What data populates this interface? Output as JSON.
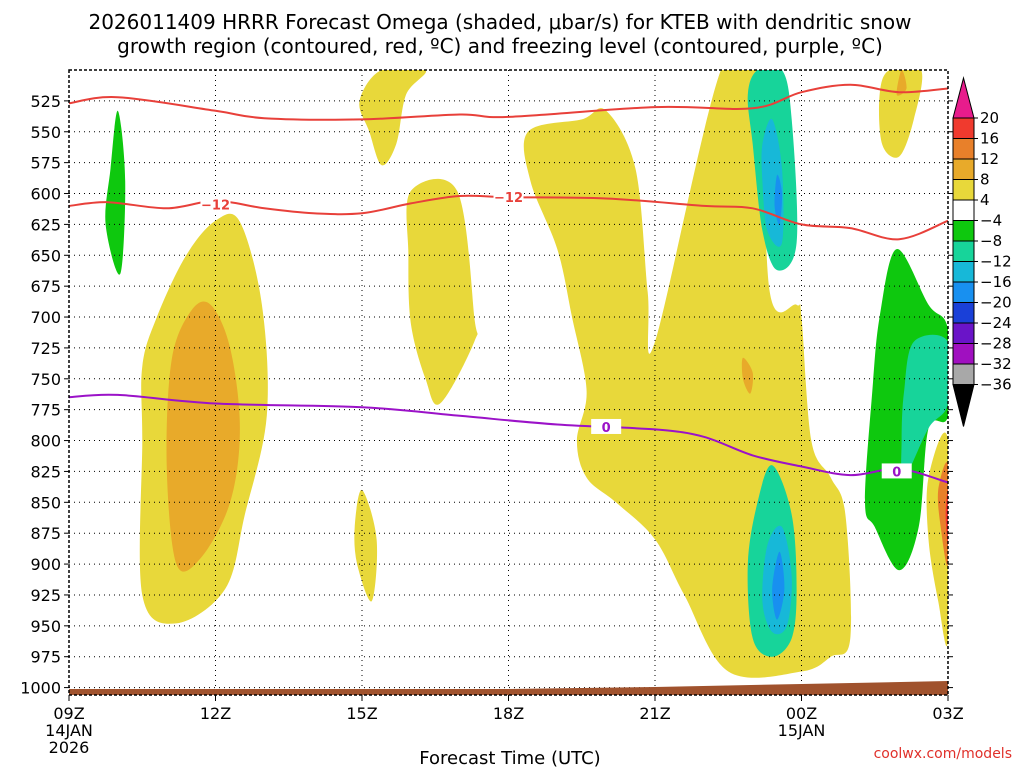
{
  "chart_data": {
    "type": "heatmap",
    "title_line1": "2026011409 HRRR Forecast Omega (shaded, μbar/s) for KTEB with dendritic snow",
    "title_line2": "growth region (contoured, red, ºC) and freezing level (contoured, purple, ºC)",
    "xlabel": "Forecast Time (UTC)",
    "x_ticks": [
      "09Z",
      "12Z",
      "15Z",
      "18Z",
      "21Z",
      "00Z",
      "03Z"
    ],
    "x_tick_hours": [
      0,
      3,
      6,
      9,
      12,
      15,
      18
    ],
    "x_sub_labels": [
      {
        "hour": 0,
        "lines": [
          "14JAN",
          "2026"
        ]
      },
      {
        "hour": 15,
        "lines": [
          "15JAN"
        ]
      }
    ],
    "y_ticks": [
      "525",
      "550",
      "575",
      "600",
      "625",
      "650",
      "675",
      "700",
      "725",
      "750",
      "775",
      "800",
      "825",
      "850",
      "875",
      "900",
      "925",
      "950",
      "975",
      "1000"
    ],
    "ylim_hpa": [
      500,
      1006
    ],
    "xlim_hours": [
      0,
      18
    ],
    "colorbar": {
      "labels": [
        "20",
        "16",
        "12",
        "8",
        "4",
        "−4",
        "−8",
        "−12",
        "−16",
        "−20",
        "−24",
        "−28",
        "−32",
        "−36"
      ],
      "colors": [
        "#e81c8c",
        "#f03a2e",
        "#e8802a",
        "#e8aa2a",
        "#e8d83a",
        "#ffffff",
        "#0ec80e",
        "#17d49a",
        "#17b8d8",
        "#1890f0",
        "#1a40d8",
        "#6a14c8",
        "#a010c0",
        "#a8a8a8",
        "#000000"
      ]
    },
    "contour_labels": {
      "dgz": "−12",
      "freezing": "0"
    },
    "dgz_upper_line": [
      [
        0,
        527
      ],
      [
        1,
        522
      ],
      [
        3,
        533
      ],
      [
        4,
        539
      ],
      [
        6,
        540
      ],
      [
        8,
        536
      ],
      [
        9,
        538
      ],
      [
        12,
        530
      ],
      [
        14,
        531
      ],
      [
        15,
        518
      ],
      [
        16,
        512
      ],
      [
        17,
        518
      ],
      [
        18,
        515
      ]
    ],
    "dgz_lower_line": [
      [
        0,
        610
      ],
      [
        0.8,
        607
      ],
      [
        2,
        612
      ],
      [
        3,
        606
      ],
      [
        4,
        612
      ],
      [
        5,
        616
      ],
      [
        6,
        616
      ],
      [
        7,
        608
      ],
      [
        8,
        602
      ],
      [
        9,
        603
      ],
      [
        11,
        604
      ],
      [
        13,
        610
      ],
      [
        14,
        612
      ],
      [
        15,
        625
      ],
      [
        16,
        628
      ],
      [
        17,
        637
      ],
      [
        18,
        622
      ]
    ],
    "freezing_line": [
      [
        0,
        765
      ],
      [
        1,
        763
      ],
      [
        3,
        770
      ],
      [
        6,
        773
      ],
      [
        8,
        780
      ],
      [
        10,
        787
      ],
      [
        12,
        791
      ],
      [
        13,
        797
      ],
      [
        14,
        812
      ],
      [
        15,
        821
      ],
      [
        16,
        828
      ],
      [
        17,
        823
      ],
      [
        18,
        834
      ]
    ],
    "omega_regions": [
      {
        "value": -6,
        "points": [
          [
            1,
            533
          ],
          [
            1.15,
            590
          ],
          [
            1.05,
            665
          ],
          [
            0.75,
            625
          ],
          [
            0.85,
            580
          ]
        ]
      },
      {
        "value": 6,
        "points": [
          [
            6.4,
            500
          ],
          [
            7.3,
            500
          ],
          [
            6.9,
            520
          ],
          [
            6.7,
            560
          ],
          [
            6.4,
            577
          ],
          [
            6.15,
            550
          ],
          [
            5.95,
            525
          ]
        ]
      },
      {
        "value": 6,
        "points": [
          [
            3,
            622
          ],
          [
            3.5,
            623
          ],
          [
            3.95,
            690
          ],
          [
            4.05,
            780
          ],
          [
            3.6,
            860
          ],
          [
            3.2,
            920
          ],
          [
            2.2,
            948
          ],
          [
            1.5,
            925
          ],
          [
            1.5,
            800
          ],
          [
            1.5,
            740
          ],
          [
            1.8,
            700
          ],
          [
            2.4,
            650
          ]
        ]
      },
      {
        "value": 10,
        "points": [
          [
            2.9,
            690
          ],
          [
            3.3,
            725
          ],
          [
            3.5,
            790
          ],
          [
            3.3,
            850
          ],
          [
            2.7,
            895
          ],
          [
            2.2,
            900
          ],
          [
            2.0,
            820
          ],
          [
            2.1,
            735
          ],
          [
            2.5,
            695
          ]
        ]
      },
      {
        "value": 6,
        "points": [
          [
            7.0,
            598
          ],
          [
            7.95,
            598
          ],
          [
            8.3,
            700
          ],
          [
            8.3,
            720
          ],
          [
            7.6,
            770
          ],
          [
            7.3,
            750
          ],
          [
            7.0,
            705
          ],
          [
            6.95,
            650
          ]
        ]
      },
      {
        "value": 6,
        "points": [
          [
            6.0,
            840
          ],
          [
            6.3,
            880
          ],
          [
            6.2,
            930
          ],
          [
            5.9,
            900
          ],
          [
            5.85,
            870
          ]
        ]
      },
      {
        "value": 6,
        "points": [
          [
            13.35,
            500
          ],
          [
            14.1,
            500
          ],
          [
            14.35,
            680
          ],
          [
            14.9,
            690
          ],
          [
            15.0,
            700
          ],
          [
            15.2,
            800
          ],
          [
            15.6,
            830
          ],
          [
            15.9,
            860
          ],
          [
            16.0,
            960
          ],
          [
            15.6,
            975
          ],
          [
            15,
            987
          ],
          [
            13.5,
            987
          ],
          [
            12.6,
            925
          ],
          [
            12.0,
            880
          ],
          [
            11.2,
            850
          ],
          [
            10.6,
            830
          ],
          [
            10.4,
            800
          ],
          [
            10.6,
            760
          ],
          [
            10.3,
            700
          ],
          [
            10.0,
            645
          ],
          [
            9.45,
            590
          ],
          [
            9.4,
            550
          ],
          [
            10.5,
            540
          ],
          [
            11.0,
            533
          ],
          [
            11.6,
            580
          ],
          [
            11.85,
            680
          ],
          [
            12.0,
            720
          ]
        ]
      },
      {
        "value": -10,
        "points": [
          [
            14.1,
            500
          ],
          [
            14.6,
            500
          ],
          [
            14.8,
            540
          ],
          [
            14.9,
            640
          ],
          [
            14.5,
            662
          ],
          [
            14.2,
            630
          ],
          [
            14.0,
            560
          ],
          [
            13.9,
            520
          ]
        ]
      },
      {
        "value": -14,
        "points": [
          [
            14.4,
            540
          ],
          [
            14.6,
            580
          ],
          [
            14.6,
            640
          ],
          [
            14.3,
            630
          ],
          [
            14.2,
            590
          ],
          [
            14.2,
            560
          ]
        ]
      },
      {
        "value": -18,
        "points": [
          [
            14.5,
            585
          ],
          [
            14.6,
            600
          ],
          [
            14.55,
            625
          ],
          [
            14.45,
            610
          ]
        ]
      },
      {
        "value": -10,
        "points": [
          [
            14.4,
            820
          ],
          [
            14.8,
            860
          ],
          [
            14.9,
            920
          ],
          [
            14.8,
            960
          ],
          [
            14.4,
            975
          ],
          [
            14.0,
            960
          ],
          [
            13.9,
            900
          ],
          [
            14.1,
            850
          ]
        ]
      },
      {
        "value": -14,
        "points": [
          [
            14.6,
            870
          ],
          [
            14.8,
            910
          ],
          [
            14.7,
            950
          ],
          [
            14.4,
            955
          ],
          [
            14.2,
            930
          ],
          [
            14.3,
            885
          ]
        ]
      },
      {
        "value": -18,
        "points": [
          [
            14.55,
            890
          ],
          [
            14.65,
            920
          ],
          [
            14.5,
            945
          ],
          [
            14.4,
            920
          ]
        ]
      },
      {
        "value": 6,
        "points": [
          [
            16.8,
            500
          ],
          [
            17.45,
            500
          ],
          [
            17.3,
            540
          ],
          [
            17.0,
            570
          ],
          [
            16.65,
            560
          ],
          [
            16.6,
            520
          ]
        ]
      },
      {
        "value": 10,
        "points": [
          [
            17.05,
            500
          ],
          [
            17.15,
            515
          ],
          [
            16.95,
            520
          ]
        ]
      },
      {
        "value": 6,
        "points": [
          [
            12.6,
            730
          ],
          [
            13.1,
            718
          ],
          [
            13.8,
            760
          ],
          [
            14.2,
            775
          ],
          [
            14.0,
            800
          ],
          [
            13.3,
            755
          ],
          [
            12.8,
            750
          ]
        ]
      },
      {
        "value": 6,
        "points": [
          [
            12.95,
            720
          ],
          [
            13.5,
            700
          ],
          [
            13.8,
            735
          ],
          [
            14.2,
            745
          ],
          [
            14.0,
            760
          ],
          [
            13.7,
            770
          ],
          [
            13.3,
            745
          ]
        ]
      },
      {
        "value": 10,
        "points": [
          [
            13.8,
            733
          ],
          [
            14.0,
            745
          ],
          [
            13.95,
            762
          ],
          [
            13.8,
            750
          ]
        ]
      },
      {
        "value": -6,
        "points": [
          [
            16.95,
            645
          ],
          [
            17.6,
            690
          ],
          [
            18.0,
            710
          ],
          [
            18.0,
            780
          ],
          [
            17.6,
            790
          ],
          [
            17.4,
            870
          ],
          [
            17.0,
            905
          ],
          [
            16.5,
            870
          ],
          [
            16.3,
            850
          ],
          [
            16.45,
            760
          ],
          [
            16.6,
            700
          ]
        ]
      },
      {
        "value": -10,
        "points": [
          [
            17.3,
            720
          ],
          [
            18.0,
            720
          ],
          [
            18.0,
            770
          ],
          [
            17.6,
            790
          ],
          [
            17.1,
            830
          ],
          [
            17.05,
            800
          ],
          [
            17.1,
            760
          ]
        ]
      },
      {
        "value": 6,
        "points": [
          [
            18.0,
            800
          ],
          [
            18.0,
            960
          ],
          [
            17.8,
            930
          ],
          [
            17.6,
            880
          ],
          [
            17.6,
            830
          ]
        ]
      },
      {
        "value": 14,
        "points": [
          [
            18.0,
            820
          ],
          [
            18.0,
            900
          ],
          [
            17.85,
            870
          ],
          [
            17.8,
            840
          ]
        ]
      },
      {
        "value": 18,
        "points": [
          [
            18.0,
            840
          ],
          [
            18.0,
            885
          ],
          [
            17.95,
            860
          ]
        ]
      }
    ]
  },
  "footer": {
    "credit": "coolwx.com/models"
  }
}
